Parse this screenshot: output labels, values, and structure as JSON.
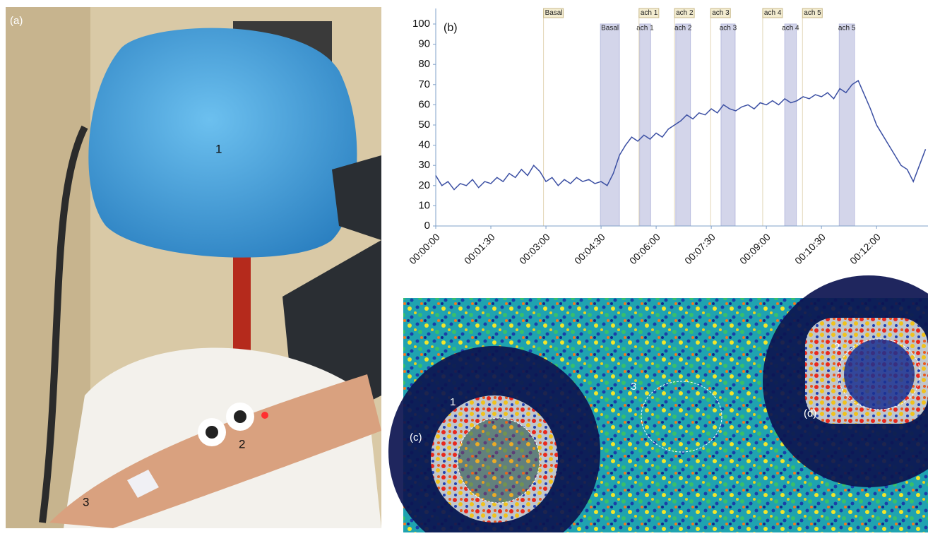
{
  "panel_a": {
    "label": "(a)",
    "callouts": [
      "1",
      "2",
      "3"
    ]
  },
  "chart_data": {
    "type": "line",
    "title": "(b)",
    "color": "#3b4fa3",
    "x": [
      0,
      10,
      20,
      30,
      40,
      50,
      60,
      70,
      80,
      90,
      100,
      110,
      120,
      130,
      140,
      150,
      160,
      170,
      180,
      190,
      200,
      210,
      220,
      230,
      240,
      250,
      260,
      270,
      280,
      290,
      300,
      310,
      320,
      330,
      340,
      350,
      360,
      370,
      380,
      390,
      400,
      410,
      420,
      430,
      440,
      450,
      460,
      470,
      480,
      490,
      500,
      510,
      520,
      530,
      540,
      550,
      560,
      570,
      580,
      590,
      600,
      610,
      620,
      630,
      640,
      650,
      660,
      670,
      680,
      690,
      700,
      710,
      720,
      730,
      740,
      750,
      760,
      770,
      780,
      790,
      800
    ],
    "values": [
      25,
      20,
      22,
      18,
      21,
      20,
      23,
      19,
      22,
      21,
      24,
      22,
      26,
      24,
      28,
      25,
      30,
      27,
      22,
      24,
      20,
      23,
      21,
      24,
      22,
      23,
      21,
      22,
      20,
      26,
      35,
      40,
      44,
      42,
      45,
      43,
      46,
      44,
      48,
      50,
      52,
      55,
      53,
      56,
      55,
      58,
      56,
      60,
      58,
      57,
      59,
      60,
      58,
      61,
      60,
      62,
      60,
      63,
      61,
      62,
      64,
      63,
      65,
      64,
      66,
      63,
      68,
      66,
      70,
      72,
      65,
      58,
      50,
      45,
      40,
      35,
      30,
      28,
      22,
      30,
      38
    ],
    "xlim": [
      0,
      804
    ],
    "ylim": [
      0,
      100
    ],
    "xticks": [
      {
        "value": 0,
        "label": "00:00:00"
      },
      {
        "value": 90,
        "label": "00:01:30"
      },
      {
        "value": 180,
        "label": "00:03:00"
      },
      {
        "value": 270,
        "label": "00:04:30"
      },
      {
        "value": 360,
        "label": "00:06:00"
      },
      {
        "value": 450,
        "label": "00:07:30"
      },
      {
        "value": 540,
        "label": "00:09:00"
      },
      {
        "value": 630,
        "label": "00:10:30"
      },
      {
        "value": 720,
        "label": "00:12:00"
      }
    ],
    "yticks": [
      0,
      10,
      20,
      30,
      40,
      50,
      60,
      70,
      80,
      90,
      100
    ],
    "markers": [
      {
        "label": "Basal",
        "x": 176
      },
      {
        "label": "ach 1",
        "x": 332
      },
      {
        "label": "ach 2",
        "x": 390
      },
      {
        "label": "ach 3",
        "x": 449
      },
      {
        "label": "ach 4",
        "x": 534
      },
      {
        "label": "ach 5",
        "x": 599
      }
    ],
    "events": [
      {
        "label": "Basal",
        "start": 269,
        "end": 300
      },
      {
        "label": "ach 1",
        "start": 333,
        "end": 351
      },
      {
        "label": "ach 2",
        "start": 392,
        "end": 416
      },
      {
        "label": "ach 3",
        "start": 466,
        "end": 489
      },
      {
        "label": "ach 4",
        "start": 570,
        "end": 589
      },
      {
        "label": "ach 5",
        "start": 659,
        "end": 684
      }
    ]
  },
  "panel_c": {
    "label": "(c)",
    "label_d": "(d)",
    "callouts": [
      "1",
      "2",
      "3"
    ]
  }
}
